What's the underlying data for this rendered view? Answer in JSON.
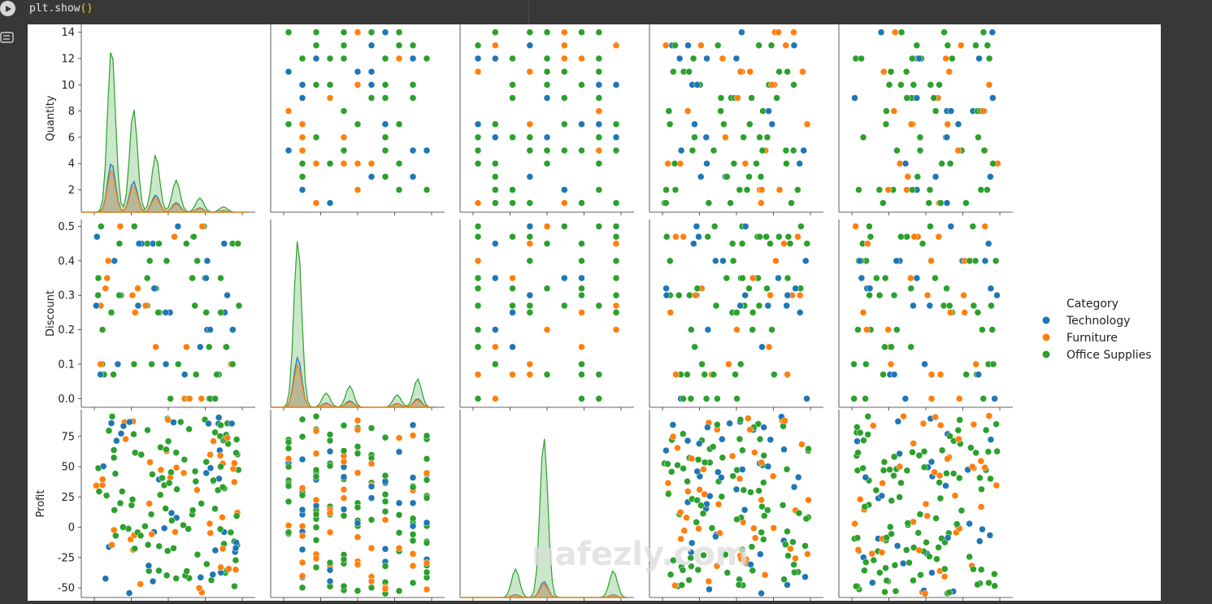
{
  "cell": {
    "code_name": "plt.show",
    "code_open": "(",
    "code_close": ")"
  },
  "icons": {
    "run": "play-circle-icon",
    "output": "output-toggle-icon"
  },
  "colors": {
    "Technology": "#1f77b4",
    "Furniture": "#ff7f0e",
    "Office Supplies": "#2ca02c"
  },
  "chart_data": {
    "type": "scatter",
    "subtype": "pairplot",
    "variables": [
      "Quantity",
      "Discount",
      "Profit"
    ],
    "row_labels": [
      "Quantity",
      "Discount",
      "Profit"
    ],
    "legend": {
      "title": "Category",
      "placement": "right",
      "entries": [
        "Technology",
        "Furniture",
        "Office Supplies"
      ]
    },
    "axes": {
      "Quantity": {
        "ticks": [
          "2",
          "4",
          "6",
          "8",
          "10",
          "12",
          "14"
        ],
        "ylim": [
          0.3,
          14.6
        ]
      },
      "Discount": {
        "ticks": [
          "0.0",
          "0.1",
          "0.2",
          "0.3",
          "0.4",
          "0.5"
        ],
        "ylim": [
          -0.025,
          0.52
        ]
      },
      "Profit": {
        "ticks": [
          "-50",
          "-25",
          "0",
          "25",
          "50",
          "75"
        ],
        "ylim": [
          -58,
          97
        ]
      }
    },
    "diagonal": "kde",
    "visible_columns": 5,
    "x_tick_labels_visible": false
  },
  "watermark": "nafezly.com"
}
